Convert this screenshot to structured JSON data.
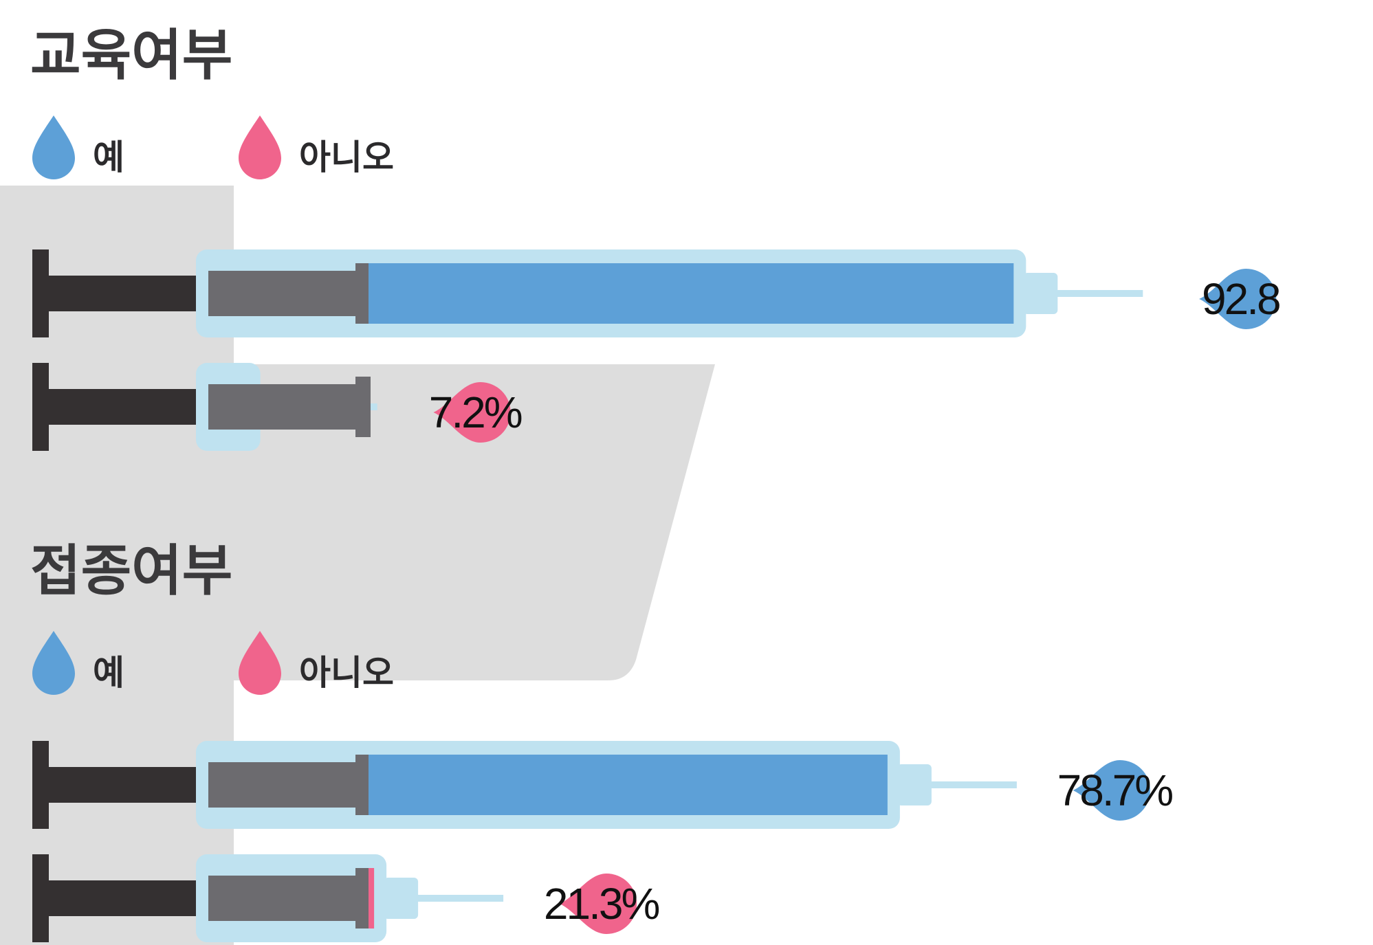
{
  "colors": {
    "yes": "#5da0d7",
    "no": "#f0648c",
    "barrel": "#bfe2f0",
    "plunger_dark": "#343031",
    "plunger_gray": "#6c6b6f",
    "panel": "#dddddd",
    "title": "#3b3a3c"
  },
  "legend": {
    "yes_label": "예",
    "no_label": "아니오"
  },
  "chart_data": [
    {
      "type": "bar",
      "title": "교육여부",
      "categories": [
        "예",
        "아니오"
      ],
      "values": [
        92.8,
        7.2
      ],
      "value_labels": [
        "92.8",
        "7.2%"
      ],
      "xlim": [
        0,
        100
      ]
    },
    {
      "type": "bar",
      "title": "접종여부",
      "categories": [
        "예",
        "아니오"
      ],
      "values": [
        78.7,
        21.3
      ],
      "value_labels": [
        "78.7%",
        "21.3%"
      ],
      "xlim": [
        0,
        100
      ]
    }
  ]
}
